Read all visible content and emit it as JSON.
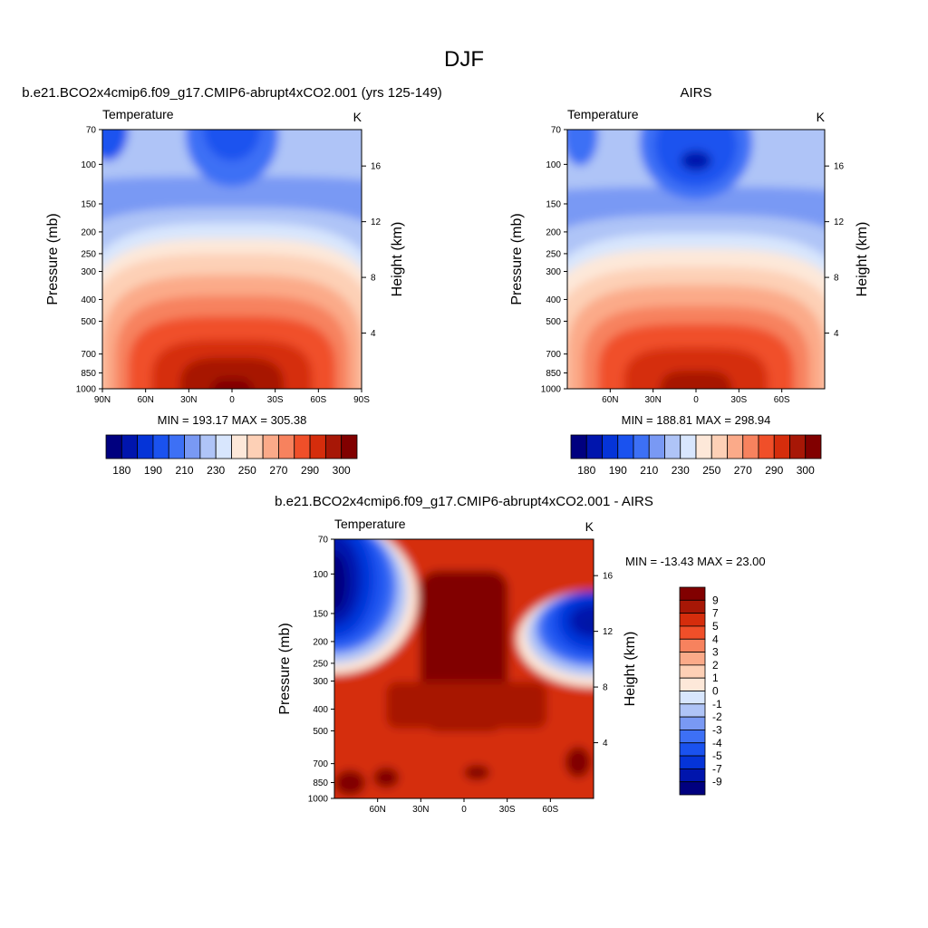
{
  "figure_title": "DJF",
  "chart_data": [
    {
      "type": "heatmap",
      "title": "b.e21.BCO2x4cmip6.f09_g17.CMIP6-abrupt4xCO2.001 (yrs 125-149)",
      "variable_label": "Temperature",
      "units": "K",
      "ylabel": "Pressure (mb)",
      "ylabel_right": "Height (km)",
      "x_tick_labels": [
        "90N",
        "60N",
        "30N",
        "0",
        "30S",
        "60S",
        "90S"
      ],
      "x_tick_values": [
        90,
        60,
        30,
        0,
        -30,
        -60,
        -90
      ],
      "xlim": [
        90,
        -90
      ],
      "y_tick_labels": [
        "70",
        "100",
        "150",
        "200",
        "250",
        "300",
        "400",
        "500",
        "700",
        "850",
        "1000"
      ],
      "y_tick_values": [
        70,
        100,
        150,
        200,
        250,
        300,
        400,
        500,
        700,
        850,
        1000
      ],
      "ylim": [
        70,
        1000
      ],
      "height_ticks": [
        "4",
        "8",
        "12",
        "16"
      ],
      "height_values": [
        4,
        8,
        12,
        16
      ],
      "min": 193.17,
      "max": 305.38,
      "stats_label": "MIN = 193.17  MAX = 305.38",
      "colorbar_orientation": "horizontal",
      "colorbar_labels": [
        "180",
        "190",
        "210",
        "230",
        "250",
        "270",
        "290",
        "300"
      ],
      "colorbar_colors": [
        "#00007f",
        "#0015ad",
        "#0534d8",
        "#1a52ef",
        "#3d70f5",
        "#7999f4",
        "#afc4f7",
        "#d8e6fd",
        "#fde8d9",
        "#fdd0b6",
        "#fbaa89",
        "#f7825e",
        "#f04f29",
        "#d52d0c",
        "#a71706",
        "#810000"
      ],
      "field_mean_by_level": [
        {
          "pressure": 70,
          "approx_K": 200
        },
        {
          "pressure": 100,
          "approx_K": 196
        },
        {
          "pressure": 150,
          "approx_K": 204
        },
        {
          "pressure": 200,
          "approx_K": 214
        },
        {
          "pressure": 250,
          "approx_K": 222
        },
        {
          "pressure": 300,
          "approx_K": 230
        },
        {
          "pressure": 400,
          "approx_K": 247
        },
        {
          "pressure": 500,
          "approx_K": 260
        },
        {
          "pressure": 700,
          "approx_K": 279
        },
        {
          "pressure": 850,
          "approx_K": 290
        },
        {
          "pressure": 1000,
          "approx_K": 298
        }
      ]
    },
    {
      "type": "heatmap",
      "title": "AIRS",
      "variable_label": "Temperature",
      "units": "K",
      "ylabel": "Pressure (mb)",
      "ylabel_right": "Height (km)",
      "x_tick_labels": [
        "60N",
        "30N",
        "0",
        "30S",
        "60S"
      ],
      "x_tick_values": [
        60,
        30,
        0,
        -30,
        -60
      ],
      "xlim": [
        90,
        -90
      ],
      "y_tick_labels": [
        "70",
        "100",
        "150",
        "200",
        "250",
        "300",
        "400",
        "500",
        "700",
        "850",
        "1000"
      ],
      "y_tick_values": [
        70,
        100,
        150,
        200,
        250,
        300,
        400,
        500,
        700,
        850,
        1000
      ],
      "ylim": [
        70,
        1000
      ],
      "height_ticks": [
        "4",
        "8",
        "12",
        "16"
      ],
      "height_values": [
        4,
        8,
        12,
        16
      ],
      "min": 188.81,
      "max": 298.94,
      "stats_label": "MIN = 188.81  MAX = 298.94",
      "colorbar_orientation": "horizontal",
      "colorbar_labels": [
        "180",
        "190",
        "210",
        "230",
        "250",
        "270",
        "290",
        "300"
      ],
      "colorbar_colors": [
        "#00007f",
        "#0015ad",
        "#0534d8",
        "#1a52ef",
        "#3d70f5",
        "#7999f4",
        "#afc4f7",
        "#d8e6fd",
        "#fde8d9",
        "#fdd0b6",
        "#fbaa89",
        "#f7825e",
        "#f04f29",
        "#d52d0c",
        "#a71706",
        "#810000"
      ],
      "field_mean_by_level": [
        {
          "pressure": 70,
          "approx_K": 198
        },
        {
          "pressure": 100,
          "approx_K": 194
        },
        {
          "pressure": 150,
          "approx_K": 203
        },
        {
          "pressure": 200,
          "approx_K": 212
        },
        {
          "pressure": 250,
          "approx_K": 220
        },
        {
          "pressure": 300,
          "approx_K": 228
        },
        {
          "pressure": 400,
          "approx_K": 244
        },
        {
          "pressure": 500,
          "approx_K": 256
        },
        {
          "pressure": 700,
          "approx_K": 274
        },
        {
          "pressure": 850,
          "approx_K": 284
        },
        {
          "pressure": 1000,
          "approx_K": 290
        }
      ]
    },
    {
      "type": "heatmap",
      "title": "b.e21.BCO2x4cmip6.f09_g17.CMIP6-abrupt4xCO2.001 - AIRS",
      "variable_label": "Temperature",
      "units": "K",
      "ylabel": "Pressure (mb)",
      "ylabel_right": "Height (km)",
      "x_tick_labels": [
        "60N",
        "30N",
        "0",
        "30S",
        "60S"
      ],
      "x_tick_values": [
        60,
        30,
        0,
        -30,
        -60
      ],
      "xlim": [
        90,
        -90
      ],
      "y_tick_labels": [
        "70",
        "100",
        "150",
        "200",
        "250",
        "300",
        "400",
        "500",
        "700",
        "850",
        "1000"
      ],
      "y_tick_values": [
        70,
        100,
        150,
        200,
        250,
        300,
        400,
        500,
        700,
        850,
        1000
      ],
      "ylim": [
        70,
        1000
      ],
      "height_ticks": [
        "4",
        "8",
        "12",
        "16"
      ],
      "height_values": [
        4,
        8,
        12,
        16
      ],
      "min": -13.43,
      "max": 23.0,
      "stats_label": "MIN = -13.43  MAX =  23.00",
      "colorbar_orientation": "vertical",
      "colorbar_labels": [
        "9",
        "7",
        "5",
        "4",
        "3",
        "2",
        "1",
        "0",
        "-1",
        "-2",
        "-3",
        "-4",
        "-5",
        "-7",
        "-9"
      ],
      "colorbar_colors": [
        "#810000",
        "#a71706",
        "#d52d0c",
        "#f04f29",
        "#f7825e",
        "#fbaa89",
        "#fdd0b6",
        "#fde8d9",
        "#d8e6fd",
        "#afc4f7",
        "#7999f4",
        "#3d70f5",
        "#1a52ef",
        "#0534d8",
        "#0015ad",
        "#00007f"
      ],
      "difference_pattern": "warming of 5-9+ K across most of the troposphere; cooling of -5 to -13 K in the polar upper levels (~100-250 mb) near both poles"
    }
  ]
}
